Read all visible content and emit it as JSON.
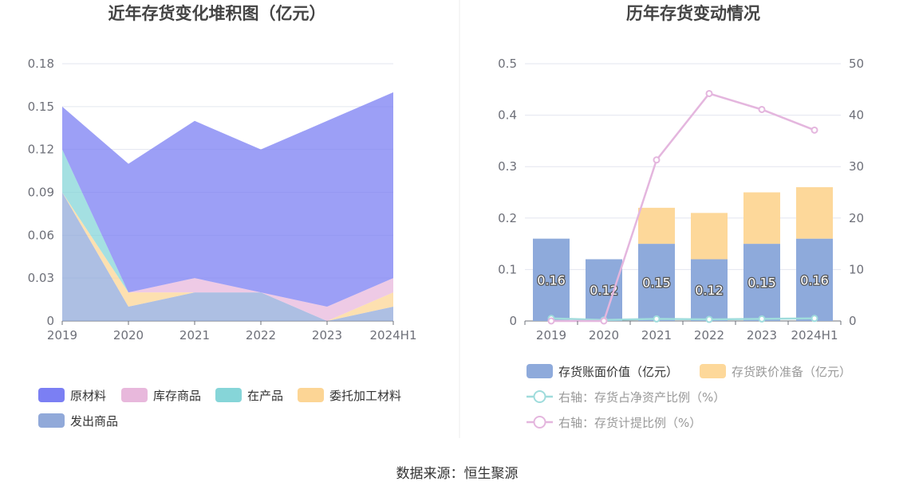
{
  "source": "数据来源：恒生聚源",
  "chart_data": [
    {
      "type": "area",
      "title": "近年存货变化堆积图（亿元）",
      "x": [
        "2019",
        "2020",
        "2021",
        "2022",
        "2023",
        "2024H1"
      ],
      "ylim": [
        0,
        0.18
      ],
      "yticks": [
        "0",
        "0.03",
        "0.06",
        "0.09",
        "0.12",
        "0.15",
        "0.18"
      ],
      "stacked": true,
      "legend_position": "bottom",
      "grid": true,
      "series": [
        {
          "name": "原材料",
          "color": "#7b7ff3",
          "values": [
            0.03,
            0.09,
            0.11,
            0.1,
            0.13,
            0.13
          ]
        },
        {
          "name": "库存商品",
          "color": "#e8b8dc",
          "values": [
            0.0,
            0.0,
            0.01,
            0.0,
            0.01,
            0.01
          ]
        },
        {
          "name": "在产品",
          "color": "#86d5d8",
          "values": [
            0.03,
            0.0,
            0.0,
            0.0,
            0.0,
            0.0
          ]
        },
        {
          "name": "委托加工材料",
          "color": "#fcd595",
          "values": [
            0.0,
            0.01,
            0.0,
            0.0,
            0.0,
            0.01
          ]
        },
        {
          "name": "发出商品",
          "color": "#91a9d9",
          "values": [
            0.09,
            0.01,
            0.02,
            0.02,
            0.0,
            0.01
          ]
        }
      ]
    },
    {
      "type": "bar",
      "title": "历年存货变动情况",
      "categories": [
        "2019",
        "2020",
        "2021",
        "2022",
        "2023",
        "2024H1"
      ],
      "ylim": [
        0,
        0.5
      ],
      "yticks": [
        "0",
        "0.1",
        "0.2",
        "0.3",
        "0.4",
        "0.5"
      ],
      "y2lim": [
        0,
        50
      ],
      "y2ticks": [
        "0",
        "10",
        "20",
        "30",
        "40",
        "50"
      ],
      "legend_position": "bottom",
      "grid": true,
      "bars": [
        {
          "name": "存货账面价值（亿元）",
          "color": "#8eaadb",
          "values": [
            0.16,
            0.12,
            0.15,
            0.12,
            0.15,
            0.16
          ],
          "labels": [
            "0.16",
            "0.12",
            "0.15",
            "0.12",
            "0.15",
            "0.16"
          ]
        },
        {
          "name": "存货跌价准备（亿元）",
          "color": "#fdd89a",
          "values": [
            0.0,
            0.0,
            0.07,
            0.09,
            0.1,
            0.1
          ]
        }
      ],
      "lines": [
        {
          "name": "右轴：存货占净资产比例（%）",
          "color": "#9fdcdc",
          "axis": "right",
          "values": [
            0.5,
            0.2,
            0.4,
            0.3,
            0.4,
            0.5
          ]
        },
        {
          "name": "右轴：存货计提比例（%）",
          "color": "#e4b6de",
          "axis": "right",
          "values": [
            0,
            0,
            31.3,
            44.2,
            41.1,
            37.1
          ]
        }
      ]
    }
  ]
}
